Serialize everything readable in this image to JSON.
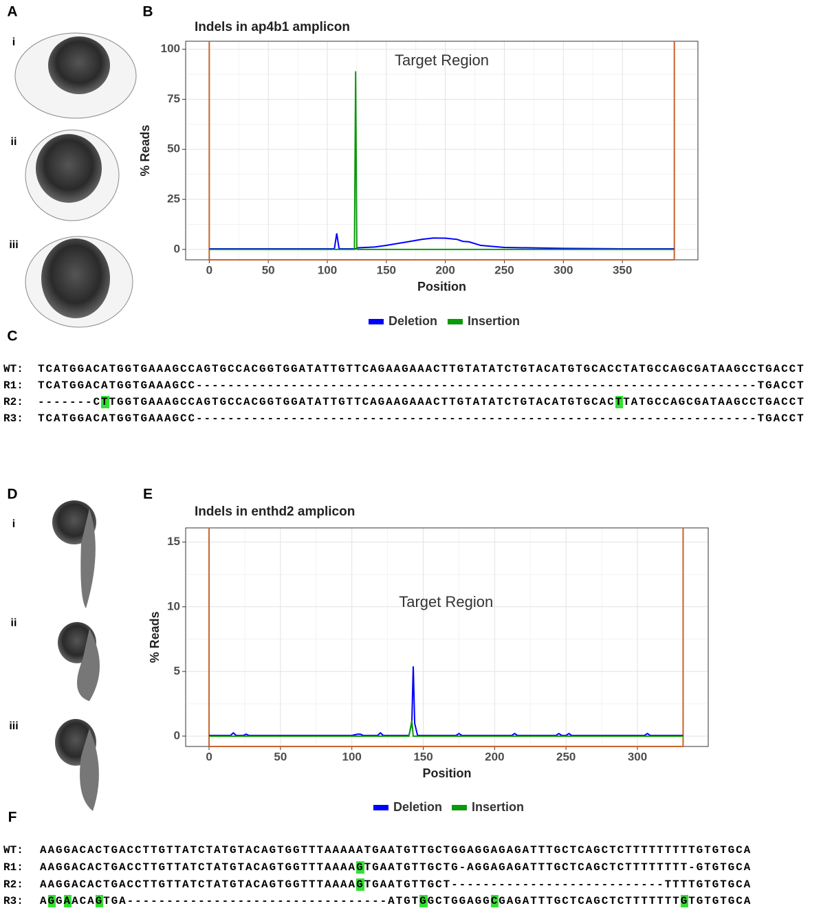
{
  "panel_labels": [
    "A",
    "B",
    "C",
    "D",
    "E",
    "F"
  ],
  "embryo_labels_a": [
    "i",
    "ii",
    "iii"
  ],
  "embryo_labels_d": [
    "i",
    "ii",
    "iii"
  ],
  "chart_data": [
    {
      "type": "line",
      "title": "Indels in ap4b1 amplicon",
      "annotation": "Target Region",
      "x_label": "Position",
      "y_label": "% Reads",
      "target_region": [
        0,
        394
      ],
      "xlim": [
        -20,
        414
      ],
      "ylim": [
        -5.2,
        104
      ],
      "xticks": [
        0,
        50,
        100,
        150,
        200,
        250,
        300,
        350
      ],
      "yticks": [
        0,
        25,
        50,
        75,
        100
      ],
      "grid": true,
      "x": [
        0,
        50,
        100,
        106,
        108,
        110,
        123,
        124,
        125,
        126,
        140,
        150,
        160,
        170,
        180,
        190,
        200,
        210,
        215,
        220,
        230,
        250,
        300,
        350,
        394
      ],
      "series": [
        {
          "name": "Deletion",
          "color": "#0000ff",
          "values": [
            0.3,
            0.3,
            0.3,
            0.3,
            8,
            0.3,
            0.3,
            0.3,
            0.6,
            0.8,
            1.2,
            2,
            3,
            4,
            5,
            5.7,
            5.6,
            5,
            4,
            3.8,
            2,
            1,
            0.5,
            0.3,
            0.3
          ]
        },
        {
          "name": "Insertion",
          "color": "#0a9a0a",
          "values": [
            0,
            0,
            0,
            0,
            0,
            0,
            0,
            89,
            0.2,
            0,
            0,
            0,
            0,
            0,
            0,
            0,
            0,
            0,
            0,
            0,
            0,
            0,
            0,
            0,
            0
          ]
        }
      ]
    },
    {
      "type": "line",
      "title": "Indels in enthd2 amplicon",
      "annotation": "Target Region",
      "x_label": "Position",
      "y_label": "% Reads",
      "target_region": [
        0,
        332
      ],
      "xlim": [
        -16.4,
        349.6
      ],
      "ylim": [
        -0.8,
        16.1
      ],
      "xticks": [
        0,
        50,
        100,
        150,
        200,
        250,
        300
      ],
      "yticks": [
        0,
        5,
        10,
        15
      ],
      "grid": true,
      "x": [
        0,
        15,
        17,
        19,
        24,
        26,
        28,
        100,
        104,
        106,
        108,
        118,
        120,
        122,
        140,
        142,
        143,
        144,
        146,
        173,
        175,
        177,
        212,
        214,
        216,
        243,
        245,
        247,
        250,
        252,
        254,
        305,
        307,
        309,
        332
      ],
      "series": [
        {
          "name": "Deletion",
          "color": "#0000ff",
          "values": [
            0.05,
            0.05,
            0.25,
            0.05,
            0.05,
            0.15,
            0.05,
            0.05,
            0.15,
            0.15,
            0.05,
            0.05,
            0.25,
            0.05,
            0.05,
            1,
            5.4,
            1,
            0.05,
            0.05,
            0.2,
            0.05,
            0.05,
            0.2,
            0.05,
            0.05,
            0.2,
            0.05,
            0.05,
            0.2,
            0.05,
            0.05,
            0.2,
            0.05,
            0.05
          ]
        },
        {
          "name": "Insertion",
          "color": "#0a9a0a",
          "values": [
            0,
            0,
            0,
            0,
            0,
            0,
            0,
            0,
            0,
            0,
            0,
            0,
            0,
            0,
            0,
            1.2,
            0,
            0,
            0,
            0,
            0,
            0,
            0,
            0,
            0,
            0,
            0,
            0,
            0,
            0,
            0,
            0,
            0,
            0,
            0
          ]
        }
      ]
    }
  ],
  "alignments": [
    {
      "rows": [
        {
          "label": "WT:",
          "segments": [
            "TCATGGACATGGTGAAAGCCAGTGCCACGGTGGATATTGTTCAGAAGAAACTTGTATATCTGTACATGTGCACCTATGCCAGCGATAAGCCTGACCT"
          ]
        },
        {
          "label": "R1:",
          "segments": [
            "TCATGGACATGGTGAAAGCC-----------------------------------------------------------------------TGACCT"
          ]
        },
        {
          "label": "R2:",
          "segments": [
            "-------C",
            "T",
            "TGGTGAAAGCCAGTGCCACGGTGGATATTGTTCAGAAGAAACTTGTATATCTGTACATGTGCAC",
            "T",
            "TATGCCAGCGATAAGCCTGACCT"
          ]
        },
        {
          "label": "R3:",
          "segments": [
            "TCATGGACATGGTGAAAGCC-----------------------------------------------------------------------TGACCT"
          ]
        }
      ]
    },
    {
      "rows": [
        {
          "label": "WT:",
          "segments": [
            "AAGGACACTGACCTTGTTATCTATGTACAGTGGTTTAAAAATGAATGTTGCTGGAGGAGAGATTTGCTCAGCTCTTTTTTTTTGTGTGCA"
          ]
        },
        {
          "label": "R1:",
          "segments": [
            "AAGGACACTGACCTTGTTATCTATGTACAGTGGTTTAAAA",
            "G",
            "TGAATGTTGCTG-AGGAGAGATTTGCTCAGCTCTTTTTTTT-GTGTGCA"
          ]
        },
        {
          "label": "R2:",
          "segments": [
            "AAGGACACTGACCTTGTTATCTATGTACAGTGGTTTAAAA",
            "G",
            "TGAATGTTGCT---------------------------TTTTGTGTGCA"
          ]
        },
        {
          "label": "R3:",
          "segments": [
            "A",
            "G",
            "G",
            "A",
            "ACA",
            "G",
            "TGA---------------------------------ATGT",
            "G",
            "GCTGGAGG",
            "C",
            "GAGATTTGCTCAGCTCTTTTTTT",
            "G",
            "TGTGTGCA"
          ]
        }
      ]
    }
  ]
}
